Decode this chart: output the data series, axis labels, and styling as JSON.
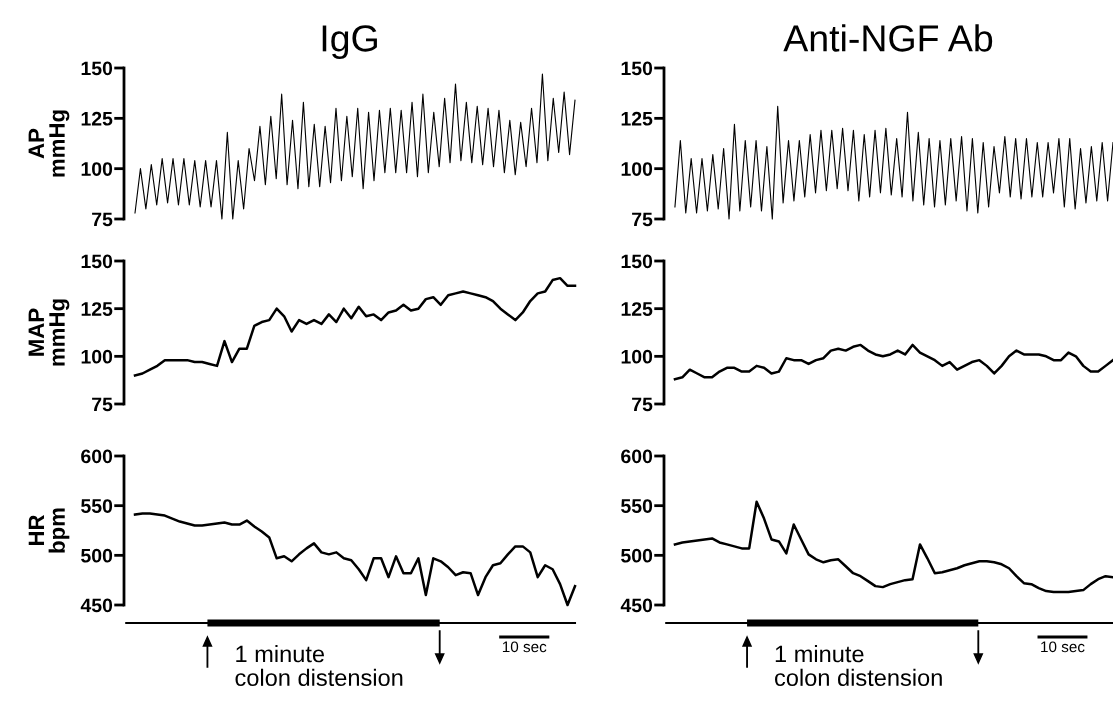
{
  "chart_data": [
    {
      "type": "line",
      "title": "IgG",
      "ylabel": "AP\nmmHg",
      "ylim": [
        75,
        150
      ],
      "yticks": [
        75,
        100,
        125,
        150
      ],
      "tick_labels": "y",
      "categories": [
        null,
        null,
        null,
        null,
        null,
        null,
        null,
        null,
        null,
        null,
        null,
        null,
        null,
        null,
        null,
        null,
        null,
        null,
        null,
        null,
        null,
        null,
        null,
        null,
        null,
        null,
        null,
        null,
        null,
        null,
        null,
        null,
        null,
        null,
        null,
        null,
        null,
        null,
        null,
        null,
        null,
        null,
        null,
        null,
        null,
        null,
        null,
        null,
        null,
        null,
        null,
        null,
        null,
        null,
        null,
        null,
        null,
        null,
        null,
        null,
        null,
        null,
        null,
        null,
        null,
        null,
        null,
        null,
        null,
        null,
        null,
        null,
        null,
        null,
        null,
        null,
        null,
        null,
        null,
        null,
        null,
        null
      ],
      "series": [
        {
          "color": "#000000",
          "values": [
            78,
            100,
            80,
            102,
            82,
            105,
            83,
            105,
            82,
            105,
            82,
            104,
            81,
            104,
            81,
            104,
            75,
            118,
            75,
            104,
            80,
            110,
            94,
            121,
            92,
            126,
            95,
            137,
            92,
            124,
            90,
            133,
            91,
            122,
            91,
            121,
            93,
            130,
            94,
            126,
            96,
            130,
            90,
            128,
            94,
            129,
            98,
            130,
            98,
            129,
            98,
            133,
            96,
            137,
            98,
            128,
            101,
            135,
            103,
            142,
            104,
            133,
            103,
            131,
            102,
            130,
            101,
            129,
            98,
            124,
            97,
            123,
            101,
            130,
            103,
            147,
            104,
            135,
            108,
            138,
            107,
            134
          ]
        }
      ]
    },
    {
      "type": "line",
      "title": "Anti-NGF Ab",
      "ylim": [
        75,
        150
      ],
      "yticks": [
        75,
        100,
        125,
        150
      ],
      "tick_labels": "y",
      "categories": [
        null,
        null,
        null,
        null,
        null,
        null,
        null,
        null,
        null,
        null,
        null,
        null,
        null,
        null,
        null,
        null,
        null,
        null,
        null,
        null,
        null,
        null,
        null,
        null,
        null,
        null,
        null,
        null,
        null,
        null,
        null,
        null,
        null,
        null,
        null,
        null,
        null,
        null,
        null,
        null,
        null,
        null,
        null,
        null,
        null,
        null,
        null,
        null,
        null,
        null,
        null,
        null,
        null,
        null,
        null,
        null,
        null,
        null,
        null,
        null,
        null,
        null,
        null,
        null,
        null,
        null,
        null,
        null,
        null,
        null,
        null,
        null,
        null,
        null,
        null,
        null,
        null,
        null,
        null,
        null,
        null,
        null
      ],
      "series": [
        {
          "color": "#000000",
          "values": [
            81,
            114,
            78,
            105,
            78,
            105,
            79,
            107,
            80,
            110,
            75,
            122,
            79,
            114,
            81,
            114,
            79,
            111,
            75,
            131,
            83,
            114,
            84,
            114,
            86,
            117,
            88,
            119,
            89,
            119,
            90,
            120,
            89,
            119,
            84,
            117,
            86,
            119,
            88,
            120,
            87,
            115,
            86,
            128,
            84,
            118,
            82,
            115,
            81,
            114,
            82,
            115,
            84,
            116,
            79,
            115,
            78,
            113,
            81,
            111,
            88,
            116,
            86,
            115,
            85,
            115,
            86,
            113,
            86,
            113,
            88,
            115,
            81,
            115,
            80,
            110,
            83,
            111,
            84,
            113,
            84,
            113
          ]
        }
      ]
    },
    {
      "type": "line",
      "ylabel": "MAP\nmmHg",
      "ylim": [
        75,
        150
      ],
      "yticks": [
        75,
        100,
        125,
        150
      ],
      "tick_labels": "y",
      "categories": [
        null,
        null,
        null,
        null,
        null,
        null,
        null,
        null,
        null,
        null,
        null,
        null,
        null,
        null,
        null,
        null,
        null,
        null,
        null,
        null,
        null,
        null,
        null,
        null,
        null,
        null,
        null,
        null,
        null,
        null,
        null,
        null,
        null,
        null,
        null,
        null,
        null,
        null,
        null,
        null,
        null,
        null,
        null,
        null,
        null,
        null,
        null,
        null,
        null,
        null,
        null,
        null,
        null,
        null,
        null,
        null,
        null,
        null,
        null,
        null
      ],
      "series": [
        {
          "color": "#000000",
          "values": [
            90,
            91,
            93,
            95,
            98,
            98,
            98,
            98,
            97,
            97,
            96,
            95,
            108,
            97,
            104,
            104,
            116,
            118,
            119,
            125,
            121,
            113,
            119,
            117,
            119,
            117,
            122,
            118,
            125,
            120,
            126,
            121,
            122,
            119,
            123,
            124,
            127,
            124,
            125,
            130,
            131,
            127,
            132,
            133,
            134,
            133,
            132,
            131,
            129,
            125,
            122,
            119,
            123,
            129,
            133,
            134,
            140,
            141,
            137,
            137
          ]
        }
      ]
    },
    {
      "type": "line",
      "ylim": [
        75,
        150
      ],
      "yticks": [
        75,
        100,
        125,
        150
      ],
      "tick_labels": "y",
      "categories": [
        null,
        null,
        null,
        null,
        null,
        null,
        null,
        null,
        null,
        null,
        null,
        null,
        null,
        null,
        null,
        null,
        null,
        null,
        null,
        null,
        null,
        null,
        null,
        null,
        null,
        null,
        null,
        null,
        null,
        null,
        null,
        null,
        null,
        null,
        null,
        null,
        null,
        null,
        null,
        null,
        null,
        null,
        null,
        null,
        null,
        null,
        null,
        null,
        null,
        null,
        null,
        null,
        null,
        null,
        null,
        null,
        null,
        null,
        null,
        null
      ],
      "series": [
        {
          "color": "#000000",
          "values": [
            88,
            89,
            93,
            91,
            89,
            89,
            92,
            94,
            94,
            92,
            92,
            95,
            94,
            91,
            92,
            99,
            98,
            98,
            96,
            98,
            99,
            103,
            104,
            103,
            105,
            106,
            103,
            101,
            100,
            101,
            103,
            101,
            106,
            102,
            100,
            98,
            95,
            97,
            93,
            95,
            97,
            98,
            95,
            91,
            95,
            100,
            103,
            101,
            101,
            101,
            100,
            98,
            98,
            102,
            100,
            95,
            92,
            92,
            95,
            98
          ]
        }
      ]
    },
    {
      "type": "line",
      "ylabel": "HR\nbpm",
      "ylim": [
        450,
        600
      ],
      "yticks": [
        450,
        500,
        550,
        600
      ],
      "tick_labels": "y",
      "annotations": [
        "1 minute\ncolon distension",
        "10 sec"
      ],
      "categories": [
        null,
        null,
        null,
        null,
        null,
        null,
        null,
        null,
        null,
        null,
        null,
        null,
        null,
        null,
        null,
        null,
        null,
        null,
        null,
        null,
        null,
        null,
        null,
        null,
        null,
        null,
        null,
        null,
        null,
        null,
        null,
        null,
        null,
        null,
        null,
        null,
        null,
        null,
        null,
        null,
        null,
        null,
        null,
        null,
        null,
        null,
        null,
        null,
        null,
        null,
        null,
        null,
        null,
        null,
        null,
        null,
        null,
        null,
        null,
        null
      ],
      "series": [
        {
          "color": "#000000",
          "values": [
            541,
            542,
            542,
            541,
            540,
            537,
            534,
            532,
            530,
            530,
            531,
            532,
            533,
            531,
            531,
            535,
            529,
            524,
            518,
            497,
            499,
            494,
            501,
            507,
            512,
            503,
            501,
            503,
            497,
            495,
            486,
            475,
            497,
            497,
            478,
            499,
            482,
            482,
            497,
            460,
            497,
            494,
            488,
            480,
            483,
            482,
            460,
            478,
            490,
            492,
            501,
            509,
            509,
            503,
            478,
            490,
            486,
            471,
            450,
            469
          ]
        }
      ]
    },
    {
      "type": "line",
      "ylim": [
        450,
        600
      ],
      "yticks": [
        450,
        500,
        550,
        600
      ],
      "tick_labels": "y",
      "annotations": [
        "1 minute\ncolon distension",
        "10 sec"
      ],
      "categories": [
        null,
        null,
        null,
        null,
        null,
        null,
        null,
        null,
        null,
        null,
        null,
        null,
        null,
        null,
        null,
        null,
        null,
        null,
        null,
        null,
        null,
        null,
        null,
        null,
        null,
        null,
        null,
        null,
        null,
        null,
        null,
        null,
        null,
        null,
        null,
        null,
        null,
        null,
        null,
        null,
        null,
        null,
        null,
        null,
        null,
        null,
        null,
        null,
        null,
        null,
        null,
        null,
        null,
        null,
        null,
        null,
        null,
        null,
        null,
        null
      ],
      "series": [
        {
          "color": "#000000",
          "values": [
            511,
            513,
            514,
            515,
            516,
            517,
            513,
            511,
            509,
            507,
            507,
            554,
            537,
            516,
            514,
            502,
            531,
            516,
            501,
            496,
            493,
            495,
            496,
            489,
            482,
            479,
            474,
            469,
            468,
            471,
            473,
            475,
            476,
            511,
            497,
            482,
            483,
            485,
            487,
            490,
            492,
            494,
            494,
            493,
            491,
            487,
            479,
            472,
            471,
            467,
            464,
            463,
            463,
            463,
            464,
            465,
            471,
            476,
            479,
            478
          ]
        }
      ]
    }
  ]
}
